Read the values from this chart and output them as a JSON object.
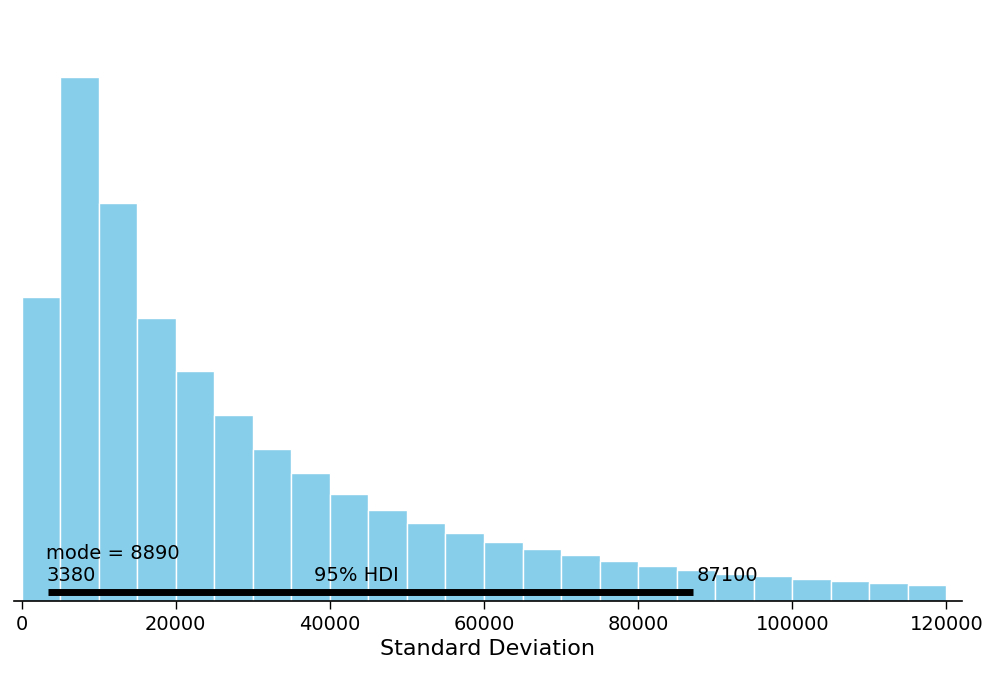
{
  "title": "",
  "xlabel": "Standard Deviation",
  "bar_color": "#87CEEB",
  "bar_edge_color": "white",
  "background_color": "white",
  "xlim": [
    -1000,
    122000
  ],
  "mode_value": 8890,
  "hdi_lower": 3380,
  "hdi_upper": 87100,
  "hdi_label": "95% HDI",
  "bin_width": 5000,
  "bin_starts": [
    0,
    5000,
    10000,
    15000,
    20000,
    25000,
    30000,
    35000,
    40000,
    45000,
    50000,
    55000,
    60000,
    65000,
    70000,
    75000,
    80000,
    85000,
    90000,
    95000,
    100000,
    105000,
    110000,
    115000
  ],
  "bar_heights": [
    0.58,
    1.0,
    0.76,
    0.54,
    0.44,
    0.355,
    0.29,
    0.245,
    0.205,
    0.175,
    0.15,
    0.13,
    0.113,
    0.1,
    0.088,
    0.077,
    0.068,
    0.06,
    0.053,
    0.048,
    0.043,
    0.039,
    0.035,
    0.032
  ],
  "hdi_linewidth": 5,
  "tick_fontsize": 14,
  "label_fontsize": 16,
  "annotation_fontsize": 14,
  "xticks": [
    0,
    20000,
    40000,
    60000,
    80000,
    100000,
    120000
  ],
  "xtick_labels": [
    "0",
    "20000",
    "40000",
    "60000",
    "80000",
    "100000",
    "120000"
  ]
}
